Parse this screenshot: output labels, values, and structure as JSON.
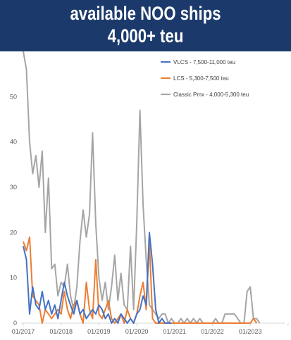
{
  "banner": {
    "line1": "available NOO ships",
    "line2": "4,000+ teu",
    "background": "#1b3a6b",
    "text_color": "#ffffff"
  },
  "chart_data": {
    "type": "line",
    "title": "available NOO ships 4,000+ teu",
    "xlabel": "",
    "ylabel": "",
    "ylim": [
      0,
      60
    ],
    "yticks": [
      0,
      10,
      20,
      30,
      40,
      50
    ],
    "xlim": [
      "2017-01",
      "2024-01"
    ],
    "xticks": [
      "01/2017",
      "01/2018",
      "01/2019",
      "01/2020",
      "01/2021",
      "01/2022",
      "01/2023"
    ],
    "grid": false,
    "legend_position": "top-right",
    "series": [
      {
        "name": "VLCS - 7,500-11,000 teu",
        "color": "#4472c4",
        "x": [
          "2017-01",
          "2017-02",
          "2017-03",
          "2017-04",
          "2017-05",
          "2017-06",
          "2017-07",
          "2017-08",
          "2017-09",
          "2017-10",
          "2017-11",
          "2017-12",
          "2018-01",
          "2018-02",
          "2018-03",
          "2018-04",
          "2018-05",
          "2018-06",
          "2018-07",
          "2018-08",
          "2018-09",
          "2018-10",
          "2018-11",
          "2018-12",
          "2019-01",
          "2019-02",
          "2019-03",
          "2019-04",
          "2019-05",
          "2019-06",
          "2019-07",
          "2019-08",
          "2019-09",
          "2019-10",
          "2019-11",
          "2019-12",
          "2020-01",
          "2020-02",
          "2020-03",
          "2020-04",
          "2020-05",
          "2020-06",
          "2020-07",
          "2020-08",
          "2020-09",
          "2020-10",
          "2020-11",
          "2020-12"
        ],
        "y": [
          17,
          14,
          2,
          8,
          4,
          3,
          7,
          3,
          5,
          2,
          4,
          1,
          5,
          9,
          6,
          4,
          2,
          5,
          2,
          3,
          1,
          2,
          3,
          2,
          4,
          3,
          1,
          2,
          0,
          1,
          0,
          2,
          1,
          0,
          1,
          0,
          2,
          3,
          6,
          4,
          20,
          13,
          3,
          0,
          1,
          0,
          0,
          0
        ]
      },
      {
        "name": "LCS - 5,300-7,500 teu",
        "color": "#ed7d31",
        "x": [
          "2017-01",
          "2017-02",
          "2017-03",
          "2017-04",
          "2017-05",
          "2017-06",
          "2017-07",
          "2017-08",
          "2017-09",
          "2017-10",
          "2017-11",
          "2017-12",
          "2018-01",
          "2018-02",
          "2018-03",
          "2018-04",
          "2018-05",
          "2018-06",
          "2018-07",
          "2018-08",
          "2018-09",
          "2018-10",
          "2018-11",
          "2018-12",
          "2019-01",
          "2019-02",
          "2019-03",
          "2019-04",
          "2019-05",
          "2019-06",
          "2019-07",
          "2019-08",
          "2019-09",
          "2019-10",
          "2019-11",
          "2019-12",
          "2020-01",
          "2020-02",
          "2020-03",
          "2020-04",
          "2020-05",
          "2020-06",
          "2020-07",
          "2020-08",
          "2020-09",
          "2020-10",
          "2020-11",
          "2020-12",
          "2023-01",
          "2023-02",
          "2023-03"
        ],
        "y": [
          18,
          16,
          19,
          6,
          5,
          4,
          0,
          3,
          2,
          1,
          2,
          3,
          2,
          7,
          3,
          1,
          4,
          5,
          2,
          0,
          9,
          3,
          1,
          14,
          2,
          1,
          3,
          5,
          1,
          0,
          1,
          2,
          0,
          3,
          1,
          0,
          2,
          6,
          9,
          3,
          18,
          1,
          0,
          0,
          0,
          0,
          0,
          0,
          0,
          1,
          0
        ]
      },
      {
        "name": "Classic Pmx - 4,000-5,300 teu",
        "color": "#a5a5a5",
        "x": [
          "2017-01",
          "2017-02",
          "2017-03",
          "2017-04",
          "2017-05",
          "2017-06",
          "2017-07",
          "2017-08",
          "2017-09",
          "2017-10",
          "2017-11",
          "2017-12",
          "2018-01",
          "2018-02",
          "2018-03",
          "2018-04",
          "2018-05",
          "2018-06",
          "2018-07",
          "2018-08",
          "2018-09",
          "2018-10",
          "2018-11",
          "2018-12",
          "2019-01",
          "2019-02",
          "2019-03",
          "2019-04",
          "2019-05",
          "2019-06",
          "2019-07",
          "2019-08",
          "2019-09",
          "2019-10",
          "2019-11",
          "2019-12",
          "2020-01",
          "2020-02",
          "2020-03",
          "2020-04",
          "2020-05",
          "2020-06",
          "2020-07",
          "2020-08",
          "2020-09",
          "2020-10",
          "2020-11",
          "2020-12",
          "2021-01",
          "2021-02",
          "2021-03",
          "2021-04",
          "2021-05",
          "2021-06",
          "2021-07",
          "2021-08",
          "2021-09",
          "2021-10",
          "2021-11",
          "2021-12",
          "2022-01",
          "2022-02",
          "2022-03",
          "2022-04",
          "2022-05",
          "2022-06",
          "2022-07",
          "2022-08",
          "2022-09",
          "2022-10",
          "2022-11",
          "2022-12",
          "2023-01",
          "2023-02",
          "2023-03",
          "2023-04"
        ],
        "y": [
          60,
          56,
          40,
          33,
          37,
          30,
          38,
          20,
          32,
          12,
          13,
          6,
          9,
          8,
          13,
          6,
          3,
          8,
          18,
          25,
          19,
          24,
          42,
          22,
          10,
          5,
          9,
          3,
          8,
          15,
          5,
          11,
          4,
          3,
          17,
          3,
          22,
          47,
          26,
          14,
          4,
          3,
          2,
          1,
          2,
          2,
          0,
          1,
          0,
          0,
          1,
          0,
          1,
          0,
          1,
          0,
          1,
          0,
          0,
          0,
          0,
          1,
          0,
          0,
          2,
          2,
          2,
          2,
          1,
          0,
          0,
          7,
          8,
          1,
          1,
          0
        ]
      }
    ]
  }
}
